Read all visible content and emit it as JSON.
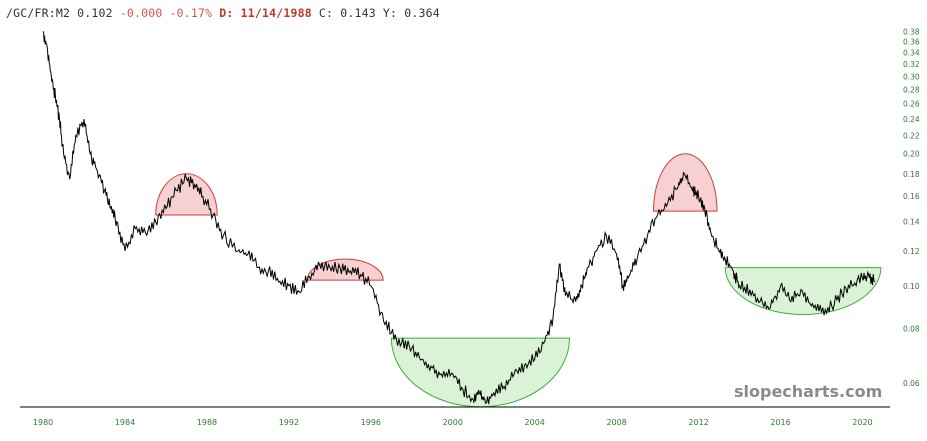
{
  "header": {
    "symbol": "/GC/FR:M2",
    "last": "0.102",
    "change": "-0.000",
    "change_pct": "-0.17%",
    "date": "D: 11/14/1988",
    "c": "C: 0.143",
    "y": "Y: 0.364"
  },
  "watermark": "slopecharts.com",
  "colors": {
    "line": "#000000",
    "axis_text": "#2e7d32",
    "red_fill": "#f6c9c9",
    "red_stroke": "#d23b3b",
    "green_fill": "#d3f0cf",
    "green_stroke": "#3fae3f",
    "negative_text": "#d9534f"
  },
  "chart_data": {
    "type": "line",
    "title": "",
    "xlabel": "",
    "ylabel": "",
    "yscale": "log",
    "xlim": [
      1979.85,
      2021.1
    ],
    "ylim": [
      0.0535,
      0.395
    ],
    "x_ticks": [
      "1980",
      "1984",
      "1988",
      "1992",
      "1996",
      "2000",
      "2004",
      "2008",
      "2012",
      "2016",
      "2020"
    ],
    "y_ticks": [
      "0.38",
      "0.36",
      "0.34",
      "0.32",
      "0.30",
      "0.28",
      "0.26",
      "0.24",
      "0.22",
      "0.20",
      "0.18",
      "0.16",
      "0.14",
      "0.12",
      "0.10",
      "0.08",
      "0.06"
    ],
    "series": [
      {
        "x": [
          1980.0,
          1980.2,
          1980.4,
          1980.6,
          1980.8,
          1981.0,
          1981.3,
          1981.6,
          1982.0,
          1982.3,
          1982.6,
          1983.0,
          1983.3,
          1983.6,
          1984.0,
          1984.5,
          1985.0,
          1985.5,
          1986.0,
          1986.5,
          1987.0,
          1987.4,
          1987.8,
          1988.3,
          1988.8,
          1989.5,
          1990.0,
          1990.5,
          1991.0,
          1991.5,
          1992.0,
          1992.5,
          1993.0,
          1993.5,
          1994.0,
          1994.5,
          1995.0,
          1995.5,
          1996.0,
          1996.5,
          1997.0,
          1997.5,
          1998.0,
          1998.5,
          1999.0,
          1999.5,
          2000.0,
          2000.5,
          2001.0,
          2001.3,
          2001.6,
          2002.0,
          2002.5,
          2003.0,
          2003.5,
          2004.0,
          2004.5,
          2004.9,
          2005.2,
          2005.5,
          2006.0,
          2006.3,
          2006.6,
          2007.0,
          2007.5,
          2008.0,
          2008.3,
          2008.6,
          2009.0,
          2009.5,
          2010.0,
          2010.5,
          2011.0,
          2011.3,
          2011.7,
          2012.0,
          2012.3,
          2012.6,
          2013.0,
          2013.3,
          2013.7,
          2014.0,
          2014.5,
          2015.0,
          2015.5,
          2016.0,
          2016.5,
          2017.0,
          2017.5,
          2018.0,
          2018.5,
          2019.0,
          2019.5,
          2020.0,
          2020.3,
          2020.6
        ],
        "values": [
          0.38,
          0.35,
          0.3,
          0.27,
          0.24,
          0.2,
          0.175,
          0.22,
          0.24,
          0.2,
          0.185,
          0.165,
          0.15,
          0.14,
          0.12,
          0.135,
          0.132,
          0.14,
          0.15,
          0.165,
          0.175,
          0.17,
          0.16,
          0.145,
          0.13,
          0.12,
          0.118,
          0.11,
          0.108,
          0.102,
          0.1,
          0.097,
          0.105,
          0.112,
          0.11,
          0.11,
          0.108,
          0.106,
          0.1,
          0.087,
          0.078,
          0.074,
          0.072,
          0.068,
          0.065,
          0.062,
          0.063,
          0.058,
          0.055,
          0.057,
          0.054,
          0.057,
          0.059,
          0.063,
          0.066,
          0.068,
          0.075,
          0.085,
          0.112,
          0.095,
          0.092,
          0.1,
          0.11,
          0.12,
          0.13,
          0.118,
          0.1,
          0.105,
          0.115,
          0.13,
          0.145,
          0.155,
          0.168,
          0.18,
          0.165,
          0.16,
          0.15,
          0.132,
          0.12,
          0.115,
          0.108,
          0.1,
          0.098,
          0.092,
          0.089,
          0.1,
          0.092,
          0.098,
          0.09,
          0.087,
          0.09,
          0.096,
          0.1,
          0.104,
          0.106,
          0.102
        ]
      }
    ],
    "annotations": [
      {
        "shape": "dome",
        "color": "red",
        "x_from": 1985.5,
        "x_to": 1988.5,
        "base": 0.145,
        "top": 0.18
      },
      {
        "shape": "dome",
        "color": "red",
        "x_from": 1992.9,
        "x_to": 1996.6,
        "base": 0.103,
        "top": 0.115
      },
      {
        "shape": "bowl",
        "color": "green",
        "x_from": 1997.0,
        "x_to": 2005.7,
        "base": 0.076,
        "bottom": 0.053
      },
      {
        "shape": "dome",
        "color": "red",
        "x_from": 2009.8,
        "x_to": 2012.9,
        "base": 0.148,
        "top": 0.2
      },
      {
        "shape": "bowl",
        "color": "green",
        "x_from": 2013.3,
        "x_to": 2020.9,
        "base": 0.11,
        "bottom": 0.086
      }
    ]
  }
}
